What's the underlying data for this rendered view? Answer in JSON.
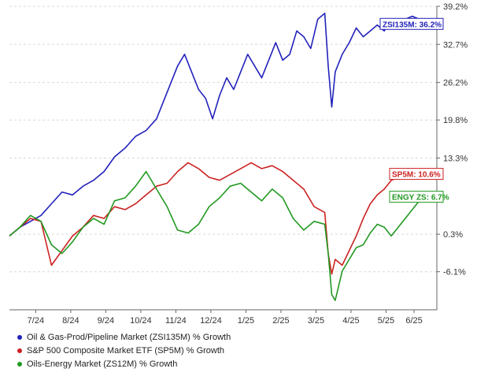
{
  "chart_data": {
    "type": "line",
    "title": "",
    "xlabel": "",
    "ylabel": "",
    "ylim": [
      -12.6,
      39.2
    ],
    "y_ticks": [
      "39.2%",
      "32.7%",
      "26.2%",
      "19.8%",
      "13.3%",
      "0.3%",
      "-6.1%"
    ],
    "y_tick_values": [
      39.2,
      32.7,
      26.2,
      19.8,
      13.3,
      0.3,
      -6.1
    ],
    "x_ticks": [
      "7/24",
      "8/24",
      "9/24",
      "10/24",
      "11/24",
      "12/24",
      "1/25",
      "2/25",
      "3/25",
      "4/25",
      "5/25",
      "6/25"
    ],
    "x_tick_positions": [
      0.75,
      1.75,
      2.75,
      3.75,
      4.75,
      5.75,
      6.75,
      7.75,
      8.75,
      9.75,
      10.75,
      11.55
    ],
    "x_range": [
      0,
      12.2
    ],
    "grid": "dashed-horizontal",
    "legend_position": "bottom-left",
    "series": [
      {
        "name": "Oil & Gas-Prod/Pipeline Market (ZSI135M) % Growth",
        "color": "#2222bb",
        "end_label": "ZSI135M: 36.2%",
        "x": [
          0,
          0.3,
          0.6,
          0.9,
          1.2,
          1.5,
          1.8,
          2.1,
          2.4,
          2.7,
          3.0,
          3.3,
          3.6,
          3.9,
          4.2,
          4.4,
          4.6,
          4.8,
          5.0,
          5.2,
          5.4,
          5.6,
          5.8,
          6.0,
          6.2,
          6.4,
          6.6,
          6.8,
          7.0,
          7.2,
          7.4,
          7.6,
          7.8,
          8.0,
          8.2,
          8.4,
          8.6,
          8.8,
          9.0,
          9.1,
          9.2,
          9.3,
          9.5,
          9.7,
          9.9,
          10.1,
          10.3,
          10.5,
          10.7,
          10.9,
          11.1,
          11.3,
          11.5,
          11.7,
          11.9
        ],
        "values": [
          0,
          1.5,
          2.5,
          3.5,
          5.5,
          7.5,
          7,
          8.5,
          9.5,
          11,
          13.5,
          15,
          17,
          18,
          20,
          23,
          26,
          29,
          31,
          28,
          25,
          23.5,
          20,
          24,
          27,
          25,
          28,
          31,
          29,
          27,
          30,
          33,
          30,
          31,
          35,
          34,
          32,
          37,
          38,
          29,
          22,
          28,
          31,
          33,
          35.5,
          34,
          35,
          36,
          35,
          37,
          36.5,
          37,
          37.5,
          37,
          36.2
        ]
      },
      {
        "name": "S&P 500 Composite Market ETF (SP5M) % Growth",
        "color": "#cc2222",
        "end_label": "SP5M: 10.6%",
        "x": [
          0,
          0.3,
          0.6,
          0.9,
          1.2,
          1.5,
          1.8,
          2.1,
          2.4,
          2.7,
          3.0,
          3.3,
          3.6,
          3.9,
          4.2,
          4.5,
          4.8,
          5.1,
          5.4,
          5.7,
          6.0,
          6.3,
          6.6,
          6.9,
          7.2,
          7.5,
          7.8,
          8.1,
          8.4,
          8.7,
          9.0,
          9.1,
          9.2,
          9.3,
          9.5,
          9.7,
          9.9,
          10.1,
          10.3,
          10.5,
          10.7,
          10.9,
          11.1,
          11.3,
          11.5,
          11.7,
          11.9
        ],
        "values": [
          0,
          1.5,
          3,
          2.5,
          -5,
          -2.5,
          0,
          1.5,
          3.5,
          3,
          5,
          4.5,
          5.5,
          7,
          8.5,
          9,
          11,
          12.5,
          11.5,
          10,
          9.5,
          10.5,
          11.5,
          12.5,
          11.5,
          12,
          11,
          9.5,
          8,
          5,
          4,
          -3,
          -6.5,
          -4,
          -5,
          -2.5,
          0,
          3,
          5.5,
          7,
          8,
          9.5,
          10,
          10.5,
          11.5,
          10.8,
          10.6
        ]
      },
      {
        "name": "Oils-Energy Market (ZS12M) % Growth",
        "color": "#229922",
        "end_label": "ENGY ZS: 6.7%",
        "x": [
          0,
          0.3,
          0.6,
          0.9,
          1.2,
          1.5,
          1.8,
          2.1,
          2.4,
          2.7,
          3.0,
          3.3,
          3.6,
          3.9,
          4.2,
          4.5,
          4.8,
          5.1,
          5.4,
          5.7,
          6.0,
          6.3,
          6.6,
          6.9,
          7.2,
          7.5,
          7.8,
          8.1,
          8.4,
          8.7,
          9.0,
          9.1,
          9.2,
          9.3,
          9.5,
          9.7,
          9.9,
          10.1,
          10.3,
          10.5,
          10.7,
          10.9,
          11.1,
          11.3,
          11.5,
          11.7,
          11.9
        ],
        "values": [
          0,
          1.5,
          3.5,
          2.5,
          -1.5,
          -3,
          -1,
          1.5,
          3,
          2,
          6,
          6.5,
          8.5,
          11,
          8,
          5,
          1,
          0.5,
          2,
          5,
          6.5,
          8.5,
          9,
          7.5,
          6,
          8,
          6.5,
          3,
          1,
          2.5,
          2,
          -3,
          -10,
          -11,
          -6,
          -4,
          -2,
          -1.5,
          0.5,
          2,
          1.5,
          0,
          1.5,
          3,
          4.5,
          6,
          6.7
        ]
      }
    ]
  }
}
